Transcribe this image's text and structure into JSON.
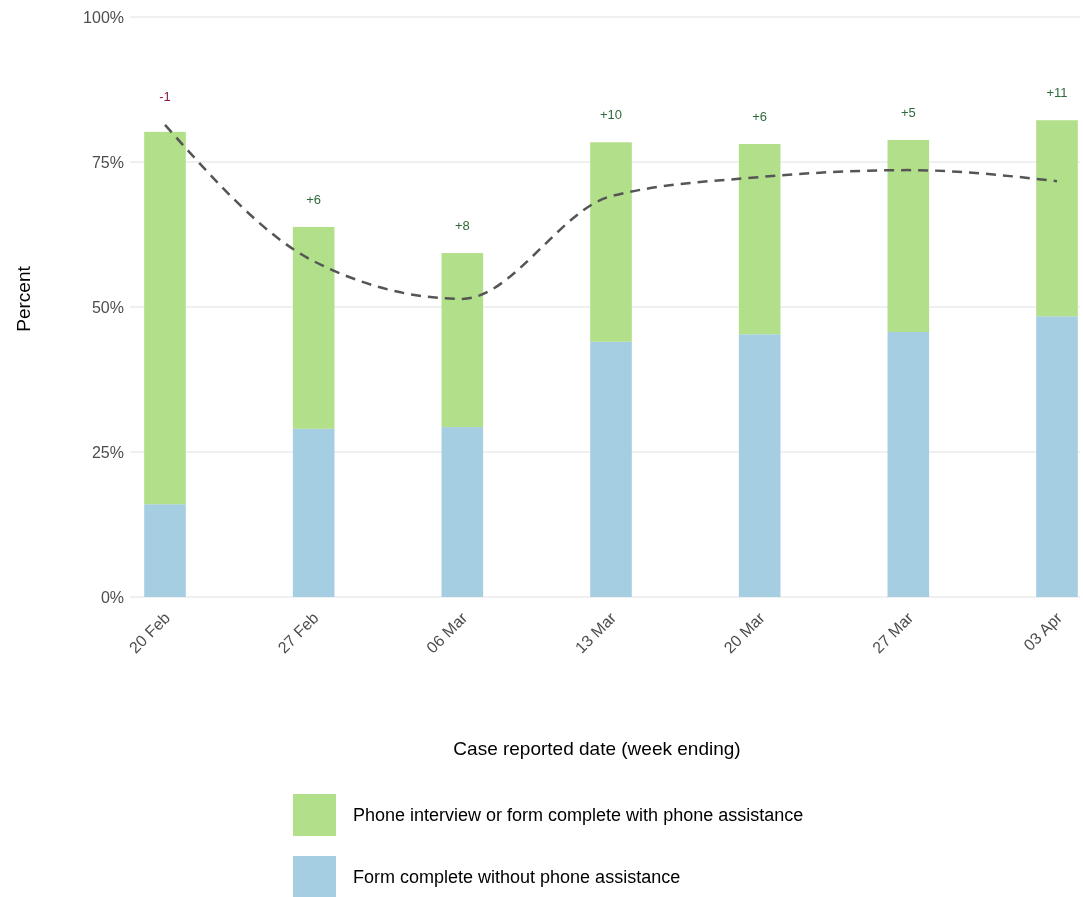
{
  "chart_data": {
    "type": "bar",
    "stacked": true,
    "xlabel": "Case reported date (week ending)",
    "ylabel": "Percent",
    "categories": [
      "20 Feb",
      "27 Feb",
      "06 Mar",
      "13 Mar",
      "20 Mar",
      "27 Mar",
      "03 Apr"
    ],
    "series": [
      {
        "name": "Form complete without phone assistance",
        "color": "#a6cee3",
        "values": [
          16.0,
          29.0,
          29.3,
          44.0,
          45.3,
          45.7,
          48.4
        ]
      },
      {
        "name": "Phone interview or form complete with phone assistance",
        "color": "#b2df8a",
        "values": [
          64.2,
          34.8,
          30.0,
          34.4,
          32.8,
          33.1,
          33.8
        ]
      },
      {
        "type": "line",
        "color": "#555555",
        "line_style": "dashed",
        "values": [
          81.4,
          57.9,
          51.4,
          69.1,
          72.4,
          73.6,
          71.7
        ]
      }
    ],
    "ylim": [
      0,
      100
    ],
    "yticks": [
      {
        "value": 0,
        "label": "0%"
      },
      {
        "value": 25,
        "label": "25%"
      },
      {
        "value": 50,
        "label": "50%"
      },
      {
        "value": 75,
        "label": "75%"
      },
      {
        "value": 100,
        "label": "100%"
      }
    ],
    "grid": "y",
    "legend": "bottom",
    "annotations": [
      "-1",
      "+6",
      "+8",
      "+10",
      "+6",
      "+5",
      "+11"
    ]
  }
}
